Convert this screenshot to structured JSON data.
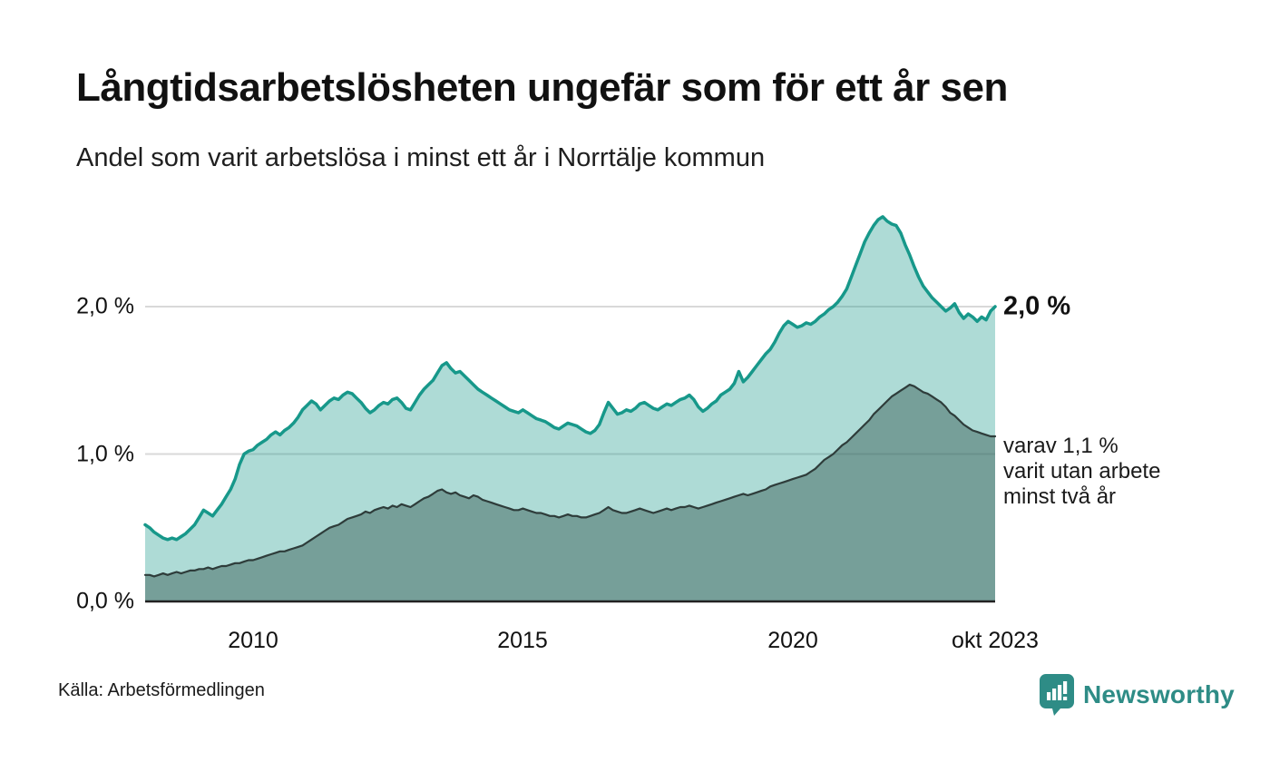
{
  "header": {
    "title": "Långtidsarbetslösheten ungefär som för ett år sen",
    "subtitle": "Andel som varit arbetslösa i minst ett år i Norrtälje kommun"
  },
  "source": {
    "label": "Källa: Arbetsförmedlingen"
  },
  "logo": {
    "label": "Newsworthy",
    "color": "#2e8c86"
  },
  "colors": {
    "accent_teal": "#17988a",
    "light_fill": "rgba(23,152,138,0.35)",
    "dark_line": "#2e3c3a",
    "dark_fill": "rgba(52,86,80,0.45)",
    "gridline": "#d9d9d9",
    "axis": "#222222"
  },
  "chart_data": {
    "type": "area",
    "title": "Långtidsarbetslösheten ungefär som för ett år sen",
    "subtitle": "Andel som varit arbetslösa i minst ett år i Norrtälje kommun",
    "x_unit": "month",
    "x_start": "2008-01",
    "x_end": "2023-10",
    "ylim": [
      0,
      2.8
    ],
    "grid": "horizontal",
    "x_ticks": [
      {
        "label": "2010",
        "index": 24
      },
      {
        "label": "2015",
        "index": 84
      },
      {
        "label": "2020",
        "index": 144
      },
      {
        "label": "okt 2023",
        "index": 189
      }
    ],
    "y_ticks": [
      {
        "label": "0,0 %",
        "value": 0
      },
      {
        "label": "1,0 %",
        "value": 1
      },
      {
        "label": "2,0 %",
        "value": 2
      }
    ],
    "series": [
      {
        "name": "Andel arbetslösa minst ett år",
        "line_color": "#17988a",
        "line_width": 3.5,
        "fill_color": "rgba(23,152,138,0.35)",
        "values": [
          0.52,
          0.5,
          0.47,
          0.45,
          0.43,
          0.42,
          0.43,
          0.42,
          0.44,
          0.46,
          0.49,
          0.52,
          0.57,
          0.62,
          0.6,
          0.58,
          0.62,
          0.66,
          0.71,
          0.76,
          0.83,
          0.93,
          1.0,
          1.02,
          1.03,
          1.06,
          1.08,
          1.1,
          1.13,
          1.15,
          1.13,
          1.16,
          1.18,
          1.21,
          1.25,
          1.3,
          1.33,
          1.36,
          1.34,
          1.3,
          1.33,
          1.36,
          1.38,
          1.37,
          1.4,
          1.42,
          1.41,
          1.38,
          1.35,
          1.31,
          1.28,
          1.3,
          1.33,
          1.35,
          1.34,
          1.37,
          1.38,
          1.35,
          1.31,
          1.3,
          1.35,
          1.4,
          1.44,
          1.47,
          1.5,
          1.55,
          1.6,
          1.62,
          1.58,
          1.55,
          1.56,
          1.53,
          1.5,
          1.47,
          1.44,
          1.42,
          1.4,
          1.38,
          1.36,
          1.34,
          1.32,
          1.3,
          1.29,
          1.28,
          1.3,
          1.28,
          1.26,
          1.24,
          1.23,
          1.22,
          1.2,
          1.18,
          1.17,
          1.19,
          1.21,
          1.2,
          1.19,
          1.17,
          1.15,
          1.14,
          1.16,
          1.2,
          1.28,
          1.35,
          1.31,
          1.27,
          1.28,
          1.3,
          1.29,
          1.31,
          1.34,
          1.35,
          1.33,
          1.31,
          1.3,
          1.32,
          1.34,
          1.33,
          1.35,
          1.37,
          1.38,
          1.4,
          1.37,
          1.32,
          1.29,
          1.31,
          1.34,
          1.36,
          1.4,
          1.42,
          1.44,
          1.48,
          1.56,
          1.49,
          1.52,
          1.56,
          1.6,
          1.64,
          1.68,
          1.71,
          1.76,
          1.82,
          1.87,
          1.9,
          1.88,
          1.86,
          1.87,
          1.89,
          1.88,
          1.9,
          1.93,
          1.95,
          1.98,
          2.0,
          2.03,
          2.07,
          2.12,
          2.2,
          2.28,
          2.36,
          2.44,
          2.5,
          2.55,
          2.59,
          2.61,
          2.58,
          2.56,
          2.55,
          2.5,
          2.42,
          2.35,
          2.27,
          2.2,
          2.14,
          2.1,
          2.06,
          2.03,
          2.0,
          1.97,
          1.99,
          2.02,
          1.96,
          1.92,
          1.95,
          1.93,
          1.9,
          1.93,
          1.91,
          1.97,
          2.0
        ]
      },
      {
        "name": "varav utan arbete minst två år",
        "line_color": "#2e3c3a",
        "line_width": 2.2,
        "fill_color": "rgba(52,86,80,0.45)",
        "values": [
          0.18,
          0.18,
          0.17,
          0.18,
          0.19,
          0.18,
          0.19,
          0.2,
          0.19,
          0.2,
          0.21,
          0.21,
          0.22,
          0.22,
          0.23,
          0.22,
          0.23,
          0.24,
          0.24,
          0.25,
          0.26,
          0.26,
          0.27,
          0.28,
          0.28,
          0.29,
          0.3,
          0.31,
          0.32,
          0.33,
          0.34,
          0.34,
          0.35,
          0.36,
          0.37,
          0.38,
          0.4,
          0.42,
          0.44,
          0.46,
          0.48,
          0.5,
          0.51,
          0.52,
          0.54,
          0.56,
          0.57,
          0.58,
          0.59,
          0.61,
          0.6,
          0.62,
          0.63,
          0.64,
          0.63,
          0.65,
          0.64,
          0.66,
          0.65,
          0.64,
          0.66,
          0.68,
          0.7,
          0.71,
          0.73,
          0.75,
          0.76,
          0.74,
          0.73,
          0.74,
          0.72,
          0.71,
          0.7,
          0.72,
          0.71,
          0.69,
          0.68,
          0.67,
          0.66,
          0.65,
          0.64,
          0.63,
          0.62,
          0.62,
          0.63,
          0.62,
          0.61,
          0.6,
          0.6,
          0.59,
          0.58,
          0.58,
          0.57,
          0.58,
          0.59,
          0.58,
          0.58,
          0.57,
          0.57,
          0.58,
          0.59,
          0.6,
          0.62,
          0.64,
          0.62,
          0.61,
          0.6,
          0.6,
          0.61,
          0.62,
          0.63,
          0.62,
          0.61,
          0.6,
          0.61,
          0.62,
          0.63,
          0.62,
          0.63,
          0.64,
          0.64,
          0.65,
          0.64,
          0.63,
          0.64,
          0.65,
          0.66,
          0.67,
          0.68,
          0.69,
          0.7,
          0.71,
          0.72,
          0.73,
          0.72,
          0.73,
          0.74,
          0.75,
          0.76,
          0.78,
          0.79,
          0.8,
          0.81,
          0.82,
          0.83,
          0.84,
          0.85,
          0.86,
          0.88,
          0.9,
          0.93,
          0.96,
          0.98,
          1.0,
          1.03,
          1.06,
          1.08,
          1.11,
          1.14,
          1.17,
          1.2,
          1.23,
          1.27,
          1.3,
          1.33,
          1.36,
          1.39,
          1.41,
          1.43,
          1.45,
          1.47,
          1.46,
          1.44,
          1.42,
          1.41,
          1.39,
          1.37,
          1.35,
          1.32,
          1.28,
          1.26,
          1.23,
          1.2,
          1.18,
          1.16,
          1.15,
          1.14,
          1.13,
          1.12,
          1.12
        ]
      }
    ],
    "annotations": [
      {
        "text": "2,0 %",
        "value": 2.0,
        "bold": true
      },
      {
        "lines": [
          "varav 1,1 %",
          "varit utan arbete",
          "minst två år"
        ],
        "value": 1.12
      }
    ]
  }
}
